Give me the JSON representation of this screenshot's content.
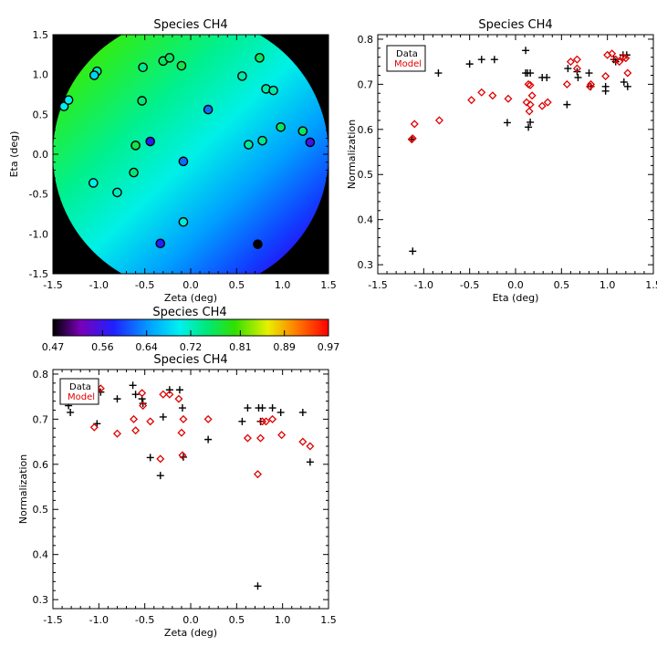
{
  "chart_data": [
    {
      "type": "scatter",
      "title": "Species CH4",
      "xlabel": "Zeta (deg)",
      "ylabel": "Eta (deg)",
      "xlim": [
        -1.5,
        1.5
      ],
      "ylim": [
        -1.5,
        1.5
      ],
      "xticks": [
        "-1.5",
        "-1.0",
        "-0.5",
        "0.0",
        "0.5",
        "1.0",
        "1.5"
      ],
      "yticks": [
        "-1.5",
        "-1.0",
        "-0.5",
        "0.0",
        "0.5",
        "1.0",
        "1.5"
      ],
      "background": "black outside circular field; inside filled with a linear gradient of model Normalization (green upper-left to blue lower-right)",
      "points": [
        {
          "x": -1.38,
          "y": 0.6,
          "v": 0.7
        },
        {
          "x": -1.33,
          "y": 0.68,
          "v": 0.7
        },
        {
          "x": -1.02,
          "y": 1.04,
          "v": 0.72
        },
        {
          "x": -1.05,
          "y": 0.99,
          "v": 0.68
        },
        {
          "x": -0.52,
          "y": 1.09,
          "v": 0.74
        },
        {
          "x": -0.3,
          "y": 1.17,
          "v": 0.76
        },
        {
          "x": -0.23,
          "y": 1.21,
          "v": 0.76
        },
        {
          "x": -0.1,
          "y": 1.11,
          "v": 0.77
        },
        {
          "x": -0.53,
          "y": 0.67,
          "v": 0.75
        },
        {
          "x": 0.56,
          "y": 0.98,
          "v": 0.73
        },
        {
          "x": 0.75,
          "y": 1.21,
          "v": 0.76
        },
        {
          "x": 0.82,
          "y": 0.82,
          "v": 0.73
        },
        {
          "x": 0.9,
          "y": 0.8,
          "v": 0.73
        },
        {
          "x": 0.19,
          "y": 0.56,
          "v": 0.62
        },
        {
          "x": 0.98,
          "y": 0.34,
          "v": 0.76
        },
        {
          "x": 1.22,
          "y": 0.29,
          "v": 0.76
        },
        {
          "x": 1.3,
          "y": 0.15,
          "v": 0.56
        },
        {
          "x": 0.78,
          "y": 0.17,
          "v": 0.74
        },
        {
          "x": 0.63,
          "y": 0.12,
          "v": 0.73
        },
        {
          "x": -0.6,
          "y": 0.11,
          "v": 0.77
        },
        {
          "x": -0.44,
          "y": 0.16,
          "v": 0.58
        },
        {
          "x": -0.08,
          "y": -0.09,
          "v": 0.62
        },
        {
          "x": -0.62,
          "y": -0.23,
          "v": 0.75
        },
        {
          "x": -1.06,
          "y": -0.36,
          "v": 0.7
        },
        {
          "x": -0.8,
          "y": -0.48,
          "v": 0.72
        },
        {
          "x": -0.08,
          "y": -0.85,
          "v": 0.71
        },
        {
          "x": -0.33,
          "y": -1.12,
          "v": 0.58
        },
        {
          "x": 0.73,
          "y": -1.13,
          "v": 0.47
        }
      ]
    },
    {
      "type": "colorbar",
      "title": "Species CH4",
      "ticks": [
        "0.47",
        "0.56",
        "0.64",
        "0.72",
        "0.81",
        "0.89",
        "0.97"
      ],
      "range": [
        0.47,
        0.97
      ],
      "colormap": "rainbow"
    },
    {
      "type": "scatter",
      "title": "Species CH4",
      "xlabel": "Eta (deg)",
      "ylabel": "Normalization",
      "xlim": [
        -1.5,
        1.5
      ],
      "ylim": [
        0.28,
        0.81
      ],
      "xticks": [
        "-1.5",
        "-1.0",
        "-0.5",
        "0.0",
        "0.5",
        "1.0",
        "1.5"
      ],
      "yticks": [
        "0.3",
        "0.4",
        "0.5",
        "0.6",
        "0.7",
        "0.8"
      ],
      "legend": {
        "position": "top-left",
        "entries": [
          "Data",
          "Model"
        ]
      },
      "series": [
        {
          "name": "Data",
          "marker": "plus",
          "color": "#000000",
          "x": [
            -1.13,
            -1.13,
            -1.12,
            -0.84,
            -0.5,
            -0.37,
            -0.23,
            -0.09,
            0.11,
            0.11,
            0.13,
            0.14,
            0.16,
            0.16,
            0.29,
            0.34,
            0.56,
            0.57,
            0.67,
            0.68,
            0.8,
            0.82,
            0.98,
            0.98,
            1.07,
            1.09,
            1.17,
            1.18,
            1.21,
            1.22
          ],
          "y": [
            0.578,
            0.578,
            0.33,
            0.725,
            0.745,
            0.755,
            0.755,
            0.615,
            0.775,
            0.725,
            0.725,
            0.605,
            0.616,
            0.725,
            0.715,
            0.715,
            0.655,
            0.735,
            0.728,
            0.715,
            0.725,
            0.695,
            0.685,
            0.695,
            0.755,
            0.75,
            0.765,
            0.705,
            0.765,
            0.695
          ]
        },
        {
          "name": "Model",
          "marker": "diamond",
          "color": "#e00000",
          "x": [
            -1.13,
            -1.12,
            -1.1,
            -0.83,
            -0.48,
            -0.37,
            -0.25,
            -0.08,
            0.12,
            0.14,
            0.15,
            0.16,
            0.16,
            0.18,
            0.29,
            0.35,
            0.56,
            0.6,
            0.67,
            0.67,
            0.81,
            0.82,
            0.98,
            1.0,
            1.05,
            1.09,
            1.13,
            1.17,
            1.2,
            1.22
          ],
          "y": [
            0.578,
            0.58,
            0.612,
            0.62,
            0.665,
            0.682,
            0.675,
            0.668,
            0.66,
            0.7,
            0.64,
            0.698,
            0.655,
            0.675,
            0.652,
            0.66,
            0.7,
            0.75,
            0.735,
            0.755,
            0.695,
            0.7,
            0.718,
            0.765,
            0.768,
            0.755,
            0.75,
            0.76,
            0.758,
            0.725
          ]
        }
      ]
    },
    {
      "type": "scatter",
      "title": "Species CH4",
      "xlabel": "Zeta (deg)",
      "ylabel": "Normalization",
      "xlim": [
        -1.5,
        1.5
      ],
      "ylim": [
        0.28,
        0.81
      ],
      "xticks": [
        "-1.5",
        "-1.0",
        "-0.5",
        "0.0",
        "0.5",
        "1.0",
        "1.5"
      ],
      "yticks": [
        "0.3",
        "0.4",
        "0.5",
        "0.6",
        "0.7",
        "0.8"
      ],
      "legend": {
        "position": "top-left",
        "entries": [
          "Data",
          "Model"
        ]
      },
      "series": [
        {
          "name": "Data",
          "marker": "plus",
          "color": "#000000",
          "x": [
            -1.33,
            -1.31,
            -1.05,
            -1.02,
            -0.98,
            -0.8,
            -0.63,
            -0.6,
            -0.53,
            -0.52,
            -0.44,
            -0.33,
            -0.3,
            -0.23,
            -0.12,
            -0.09,
            -0.08,
            0.19,
            0.56,
            0.62,
            0.73,
            0.74,
            0.76,
            0.78,
            0.89,
            0.98,
            1.22,
            1.3
          ],
          "y": [
            0.73,
            0.715,
            0.755,
            0.69,
            0.76,
            0.745,
            0.775,
            0.755,
            0.745,
            0.735,
            0.615,
            0.575,
            0.705,
            0.765,
            0.765,
            0.725,
            0.616,
            0.655,
            0.695,
            0.725,
            0.33,
            0.725,
            0.695,
            0.725,
            0.725,
            0.715,
            0.715,
            0.605
          ]
        },
        {
          "name": "Model",
          "marker": "diamond",
          "color": "#e00000",
          "x": [
            -1.31,
            -1.05,
            -1.02,
            -0.98,
            -0.8,
            -0.62,
            -0.6,
            -0.53,
            -0.52,
            -0.44,
            -0.33,
            -0.3,
            -0.23,
            -0.13,
            -0.1,
            -0.09,
            -0.08,
            0.19,
            0.62,
            0.73,
            0.76,
            0.78,
            0.82,
            0.89,
            0.99,
            1.22,
            1.3
          ],
          "y": [
            0.75,
            0.682,
            0.765,
            0.768,
            0.668,
            0.7,
            0.675,
            0.758,
            0.73,
            0.695,
            0.612,
            0.755,
            0.755,
            0.745,
            0.67,
            0.62,
            0.7,
            0.7,
            0.658,
            0.578,
            0.658,
            0.695,
            0.695,
            0.7,
            0.665,
            0.65,
            0.64
          ]
        }
      ]
    }
  ]
}
